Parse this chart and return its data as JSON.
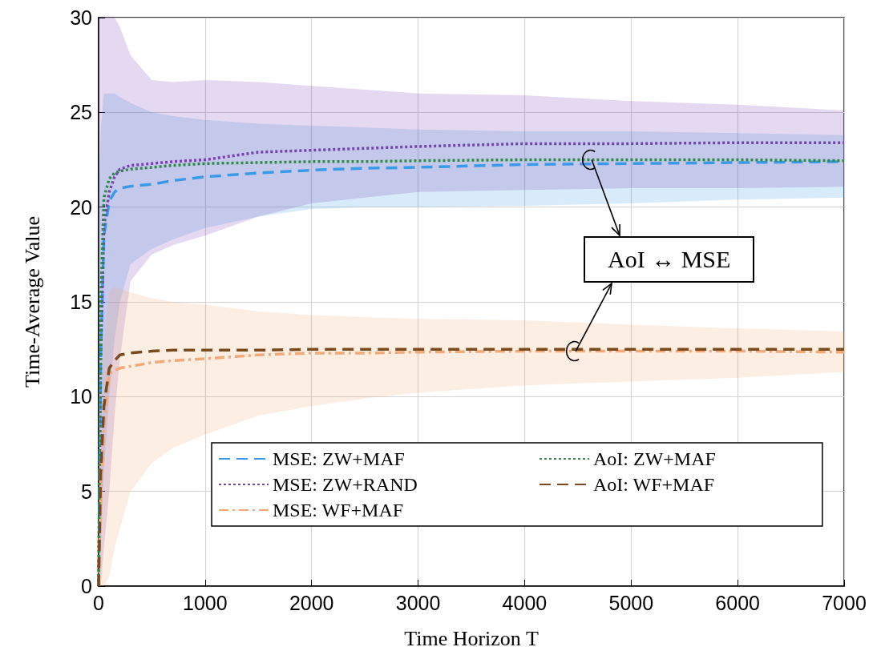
{
  "chart_data": {
    "type": "line",
    "xlabel": "Time Horizon T",
    "ylabel": "Time-Average Value",
    "x": [
      0,
      20,
      50,
      100,
      150,
      200,
      300,
      500,
      700,
      1000,
      1500,
      2000,
      2500,
      3000,
      4000,
      5000,
      6000,
      7000
    ],
    "xlim": [
      0,
      7000
    ],
    "xticks": [
      0,
      1000,
      2000,
      3000,
      4000,
      5000,
      6000,
      7000
    ],
    "ylim": [
      0,
      30
    ],
    "yticks": [
      0,
      5,
      10,
      15,
      20,
      25,
      30
    ],
    "grid": true,
    "legend": "bottom right",
    "marker": "none",
    "annotations": [
      {
        "text": "AoI ↔ MSE",
        "x": 4600,
        "y": 22.5
      }
    ],
    "series": [
      {
        "name": "MSE: ZW+MAF",
        "color": "#3a9ae8",
        "line_style": "dashed",
        "values": [
          0,
          12,
          18.5,
          20.3,
          20.8,
          21.0,
          21.1,
          21.2,
          21.4,
          21.6,
          21.8,
          21.95,
          22.05,
          22.1,
          22.25,
          22.3,
          22.35,
          22.4
        ],
        "lower": [
          0,
          2,
          6,
          10,
          13,
          15,
          17.0,
          17.8,
          18.3,
          18.9,
          19.5,
          19.9,
          20.0,
          20.0,
          20.07,
          20.2,
          20.4,
          20.5
        ],
        "upper": [
          20,
          24,
          26,
          26,
          26,
          25.8,
          25.5,
          25,
          24.8,
          24.6,
          24.4,
          24.3,
          24.2,
          24.1,
          24.0,
          24.0,
          23.9,
          23.8
        ]
      },
      {
        "name": "MSE: ZW+RAND",
        "color": "#7a3fb5",
        "line_style": "dotted",
        "values": [
          0,
          12,
          19,
          20.8,
          21.6,
          22.0,
          22.2,
          22.3,
          22.4,
          22.5,
          22.9,
          23.0,
          23.1,
          23.2,
          23.35,
          23.35,
          23.4,
          23.4
        ],
        "lower": [
          0,
          0,
          2,
          5,
          9,
          12,
          16.1,
          17.5,
          18,
          18.5,
          19.5,
          20.2,
          20.5,
          20.8,
          20.9,
          21.0,
          21.0,
          21.07
        ],
        "upper": [
          30,
          30,
          30,
          30,
          30,
          29.5,
          28,
          26.7,
          26.6,
          26.7,
          26.6,
          26.4,
          26.2,
          26.0,
          25.9,
          25.6,
          25.4,
          25.1
        ]
      },
      {
        "name": "MSE: WF+MAF",
        "color": "#f5a878",
        "line_style": "dashdot",
        "values": [
          0,
          5,
          8.5,
          11.2,
          11.4,
          11.5,
          11.6,
          11.8,
          11.9,
          12.0,
          12.2,
          12.3,
          12.3,
          12.35,
          12.4,
          12.4,
          12.4,
          12.35
        ],
        "lower": [
          0,
          0,
          0,
          0.5,
          2,
          3,
          5,
          6.5,
          7.3,
          8,
          9,
          9.5,
          9.9,
          10.2,
          10.6,
          10.8,
          11.0,
          11.3
        ],
        "upper": [
          5,
          10,
          13,
          15.5,
          15.8,
          15.7,
          15.5,
          15.2,
          15.0,
          14.85,
          14.5,
          14.3,
          14.2,
          14.1,
          14.03,
          13.8,
          13.6,
          13.45
        ]
      },
      {
        "name": "AoI: ZW+MAF",
        "color": "#2e8b45",
        "line_style": "dotted",
        "values": [
          0,
          15,
          20.5,
          21.5,
          21.8,
          21.9,
          22.0,
          22.1,
          22.2,
          22.3,
          22.35,
          22.4,
          22.4,
          22.45,
          22.5,
          22.5,
          22.5,
          22.45
        ]
      },
      {
        "name": "AoI: WF+MAF",
        "color": "#7a4a1e",
        "line_style": "dashed",
        "values": [
          0,
          6,
          9.5,
          11.5,
          11.9,
          12.2,
          12.3,
          12.4,
          12.45,
          12.45,
          12.45,
          12.5,
          12.5,
          12.5,
          12.5,
          12.5,
          12.5,
          12.5
        ]
      }
    ]
  }
}
